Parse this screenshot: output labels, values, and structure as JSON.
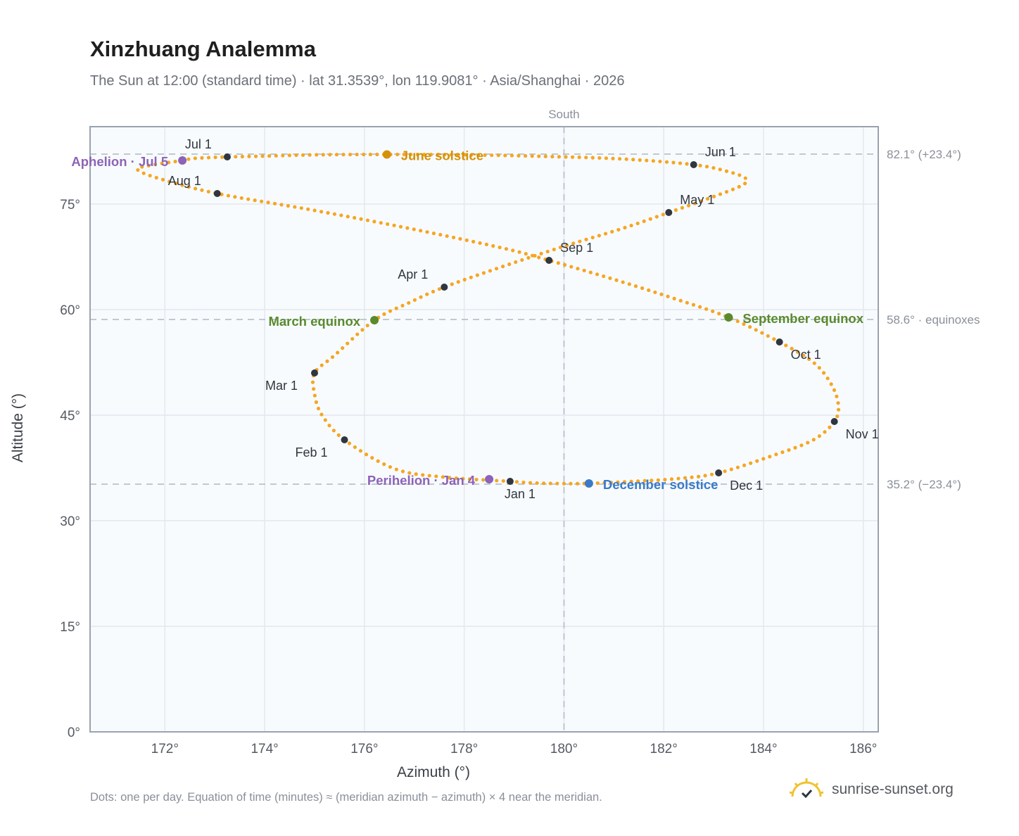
{
  "header": {
    "title": "Xinzhuang Analemma",
    "subtitle": "The Sun at 12:00 (standard time) · lat 31.3539°, lon 119.9081° · Asia/Shanghai · 2026"
  },
  "footer": {
    "note": "Dots: one per day. Equation of time (minutes) ≈ (meridian azimuth − azimuth) × 4 near the meridian.",
    "brand": "sunrise-sunset.org"
  },
  "colors": {
    "path": "#f5a623",
    "month_marker": "#2f3640",
    "equinox": "#5a8a2e",
    "june_solstice": "#d4920a",
    "december_solstice": "#3a7bc8",
    "apsis": "#8c63b8",
    "reference_line": "#b9c1cc",
    "plot_bg": "#f8fbfd",
    "grid": "#e3e8ee",
    "frame": "#9aa3ae"
  },
  "chart_data": {
    "type": "scatter",
    "xlabel": "Azimuth (°)",
    "ylabel": "Altitude (°)",
    "xlim": [
      170.5,
      186.3
    ],
    "ylim": [
      0,
      86
    ],
    "xticks": [
      172,
      174,
      176,
      178,
      180,
      182,
      184,
      186
    ],
    "xtick_labels": [
      "172°",
      "174°",
      "176°",
      "178°",
      "180°",
      "182°",
      "184°",
      "186°"
    ],
    "yticks": [
      0,
      15,
      30,
      45,
      60,
      75
    ],
    "ytick_labels": [
      "0°",
      "15°",
      "30°",
      "45°",
      "60°",
      "75°"
    ],
    "grid": true,
    "meridian": {
      "x": 180,
      "label": "South"
    },
    "reference_lines": [
      {
        "y": 82.1,
        "label": "82.1° (+23.4°)"
      },
      {
        "y": 58.6,
        "label": "58.6° · equinoxes"
      },
      {
        "y": 35.2,
        "label": "35.2° (−23.4°)"
      }
    ],
    "series": [
      {
        "type": "line-dots",
        "points": [
          [
            178.92,
            35.6
          ],
          [
            177.6,
            36.2
          ],
          [
            176.6,
            37.4
          ],
          [
            175.6,
            41.5
          ],
          [
            175.15,
            45.0
          ],
          [
            175.0,
            48.0
          ],
          [
            175.0,
            51.0
          ],
          [
            175.4,
            53.5
          ],
          [
            176.2,
            58.5
          ],
          [
            176.9,
            61.0
          ],
          [
            177.6,
            63.2
          ],
          [
            178.8,
            66.2
          ],
          [
            180.0,
            69.0
          ],
          [
            181.2,
            71.6
          ],
          [
            182.1,
            73.8
          ],
          [
            182.9,
            75.8
          ],
          [
            183.55,
            77.6
          ],
          [
            183.65,
            78.6
          ],
          [
            183.3,
            79.6
          ],
          [
            182.6,
            80.6
          ],
          [
            181.2,
            81.4
          ],
          [
            179.5,
            81.8
          ],
          [
            178.0,
            82.0
          ],
          [
            176.45,
            82.05
          ],
          [
            175.0,
            82.0
          ],
          [
            173.9,
            81.8
          ],
          [
            173.25,
            81.7
          ],
          [
            172.6,
            81.5
          ],
          [
            172.35,
            81.2
          ],
          [
            171.7,
            80.5
          ],
          [
            171.45,
            79.9
          ],
          [
            171.9,
            78.6
          ],
          [
            173.05,
            76.5
          ],
          [
            175.0,
            74.1
          ],
          [
            177.0,
            71.4
          ],
          [
            178.8,
            68.7
          ],
          [
            179.7,
            67.0
          ],
          [
            181.0,
            64.3
          ],
          [
            182.2,
            61.6
          ],
          [
            183.3,
            58.9
          ],
          [
            184.32,
            55.4
          ],
          [
            185.0,
            52.5
          ],
          [
            185.35,
            49.5
          ],
          [
            185.5,
            46.5
          ],
          [
            185.42,
            44.1
          ],
          [
            185.0,
            41.5
          ],
          [
            184.2,
            39.3
          ],
          [
            183.1,
            36.8
          ],
          [
            182.3,
            36.0
          ],
          [
            181.4,
            35.6
          ],
          [
            180.5,
            35.3
          ],
          [
            179.8,
            35.3
          ],
          [
            179.3,
            35.4
          ],
          [
            178.92,
            35.6
          ]
        ]
      }
    ],
    "month_markers": [
      {
        "label": "Jan 1",
        "az": 178.92,
        "alt": 35.6
      },
      {
        "label": "Feb 1",
        "az": 175.6,
        "alt": 41.5
      },
      {
        "label": "Mar 1",
        "az": 175.0,
        "alt": 51.0
      },
      {
        "label": "Apr 1",
        "az": 177.6,
        "alt": 63.2
      },
      {
        "label": "May 1",
        "az": 182.1,
        "alt": 73.8
      },
      {
        "label": "Jun 1",
        "az": 182.6,
        "alt": 80.6
      },
      {
        "label": "Jul 1",
        "az": 173.25,
        "alt": 81.7
      },
      {
        "label": "Aug 1",
        "az": 173.05,
        "alt": 76.5
      },
      {
        "label": "Sep 1",
        "az": 179.7,
        "alt": 67.0
      },
      {
        "label": "Oct 1",
        "az": 184.32,
        "alt": 55.4
      },
      {
        "label": "Nov 1",
        "az": 185.42,
        "alt": 44.1
      },
      {
        "label": "Dec 1",
        "az": 183.1,
        "alt": 36.8
      }
    ],
    "events": [
      {
        "label": "June solstice",
        "az": 176.45,
        "alt": 82.05,
        "color_key": "june_solstice"
      },
      {
        "label": "December solstice",
        "az": 180.5,
        "alt": 35.3,
        "color_key": "december_solstice"
      },
      {
        "label": "March equinox",
        "az": 176.2,
        "alt": 58.5,
        "color_key": "equinox"
      },
      {
        "label": "September equinox",
        "az": 183.3,
        "alt": 58.9,
        "color_key": "equinox"
      },
      {
        "label": "Aphelion · Jul 5",
        "az": 172.35,
        "alt": 81.2,
        "color_key": "apsis"
      },
      {
        "label": "Perihelion · Jan 4",
        "az": 178.5,
        "alt": 35.9,
        "color_key": "apsis"
      }
    ]
  }
}
